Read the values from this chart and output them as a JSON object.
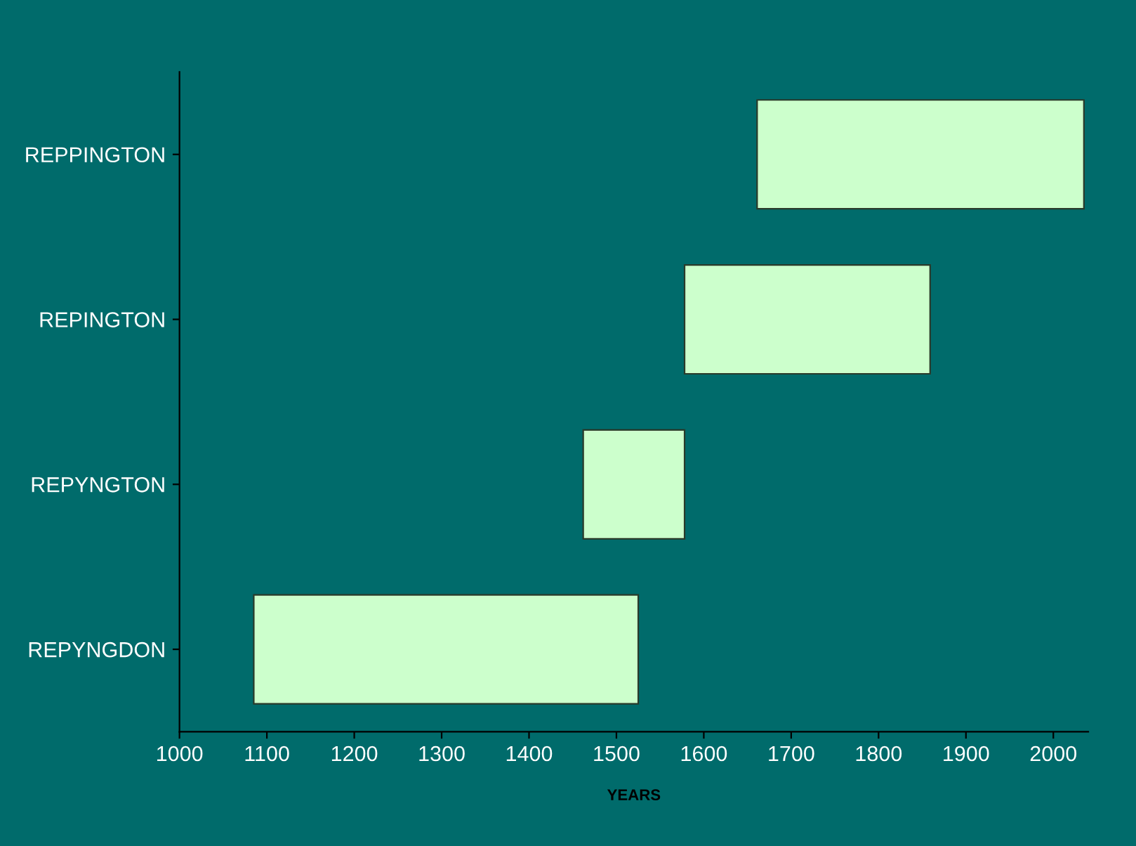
{
  "chart_data": {
    "type": "bar",
    "orientation": "horizontal",
    "xlabel": "YEARS",
    "categories": [
      "REPPINGTON",
      "REPINGTON",
      "REPYNGTON",
      "REPYNGDON"
    ],
    "base": [
      1661,
      1578,
      1462,
      1085
    ],
    "values": [
      374,
      281,
      116,
      440
    ],
    "color": "#ccffcc",
    "xlim": [
      1000,
      2040
    ],
    "xticks": [
      1000,
      1100,
      1200,
      1300,
      1400,
      1500,
      1600,
      1700,
      1800,
      1900,
      2000
    ],
    "grid": false,
    "legend": false
  }
}
